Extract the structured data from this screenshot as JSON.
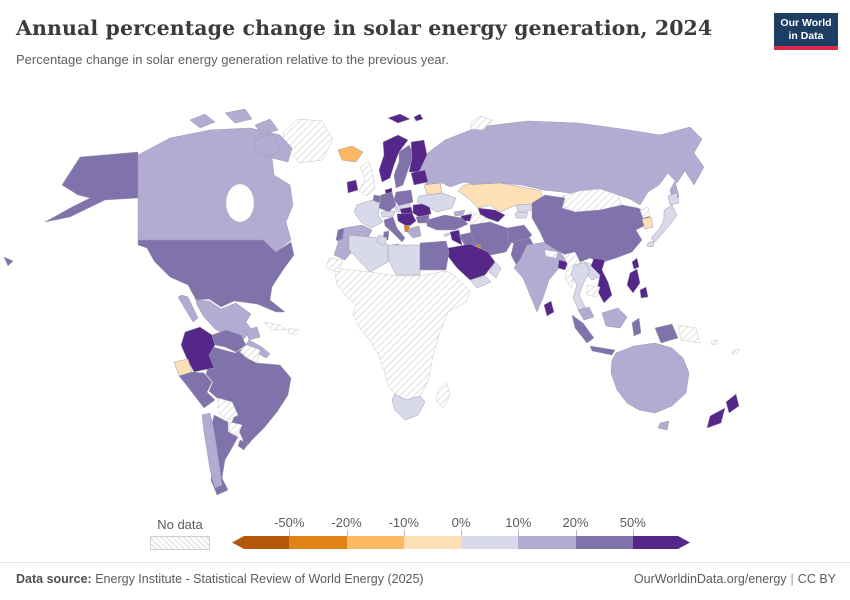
{
  "header": {
    "title": "Annual percentage change in solar energy generation, 2024",
    "subtitle": "Percentage change in solar energy generation relative to the previous year.",
    "logo": {
      "line1": "Our World",
      "line2": "in Data",
      "bg_color": "#1d3d63",
      "accent_color": "#e0294a"
    }
  },
  "legend": {
    "no_data_label": "No data",
    "ticks": [
      "-50%",
      "-20%",
      "-10%",
      "0%",
      "10%",
      "20%",
      "50%"
    ],
    "bin_labels": [
      "less than -50%",
      "-50% to -20%",
      "-20% to -10%",
      "-10% to 0%",
      "0% to 10%",
      "10% to 20%",
      "20% to 50%",
      "more than 50%"
    ],
    "colors": [
      "#b35806",
      "#e08214",
      "#fdb863",
      "#fee0b6",
      "#d8daeb",
      "#b2abd2",
      "#8073ac",
      "#542788"
    ]
  },
  "footer": {
    "source_label": "Data source:",
    "source_text": " Energy Institute - Statistical Review of World Energy (2025)",
    "link_text": "OurWorldinData.org/energy",
    "separator": "|",
    "license_text": "CC BY"
  },
  "chart_data": {
    "type": "choropleth-world-map",
    "title": "Annual percentage change in solar energy generation, 2024",
    "unit": "%",
    "no_data_style": "hatched",
    "bin_edges": [
      "-50%",
      "-20%",
      "-10%",
      "0%",
      "10%",
      "20%",
      "50%"
    ],
    "note": "bin is an index into legend.colors; null = no data",
    "regions": {
      "united-states": 6,
      "hawaii": 6,
      "canada": 5,
      "canada-arctic-islands": 5,
      "greenland": null,
      "mexico": 5,
      "central-america": 5,
      "cuba": null,
      "hispaniola": null,
      "colombia": 7,
      "venezuela": 6,
      "guyanas": null,
      "ecuador": 3,
      "peru": 6,
      "brazil": 6,
      "bolivia": null,
      "paraguay": null,
      "chile": 5,
      "argentina": 6,
      "uruguay": 6,
      "iceland": 2,
      "united-kingdom": null,
      "ireland": 7,
      "norway": 7,
      "sweden": 6,
      "finland": 7,
      "denmark": 7,
      "svalbard": 7,
      "france": 4,
      "spain": 5,
      "portugal": 6,
      "germany": 6,
      "benelux": 6,
      "poland": 6,
      "czechia-slovakia": 4,
      "austria-switzerland": 4,
      "italy": 6,
      "hungary": 7,
      "balkans": 7,
      "albania": 1,
      "greece": 5,
      "romania": 7,
      "bulgaria": 6,
      "baltics": 7,
      "belarus": 3,
      "ukraine": 4,
      "russia": 5,
      "novaya-zemlya": null,
      "kazakhstan": 3,
      "uzbekistan": 7,
      "turkmenistan": null,
      "kyrgyzstan": 4,
      "tajikistan": 4,
      "georgia": 5,
      "azerbaijan": 7,
      "turkey": 6,
      "cyprus": 4,
      "levant": 7,
      "iraq": 6,
      "kuwait": 1,
      "saudi-arabia": 7,
      "yemen": 4,
      "oman": 4,
      "iran": 6,
      "afghanistan": 6,
      "pakistan": 6,
      "india": 5,
      "nepal": null,
      "bangladesh": 7,
      "sri-lanka": 7,
      "egypt": 6,
      "libya": 4,
      "tunisia": 4,
      "algeria": 4,
      "morocco": 5,
      "western-sahara": null,
      "sub-saharan-africa": null,
      "south-africa": 4,
      "madagascar": null,
      "china": 6,
      "mongolia": null,
      "north-korea": null,
      "south-korea": 3,
      "japan": 4,
      "taiwan": 7,
      "myanmar": null,
      "thailand": 4,
      "laos": 4,
      "vietnam": 7,
      "cambodia": null,
      "malaysia": 5,
      "borneo": 5,
      "indonesia": 6,
      "philippines": 7,
      "west-papua": 6,
      "papua-new-guinea": null,
      "pacific-islands": null,
      "australia": 5,
      "tasmania": 5,
      "new-zealand": 7
    }
  }
}
